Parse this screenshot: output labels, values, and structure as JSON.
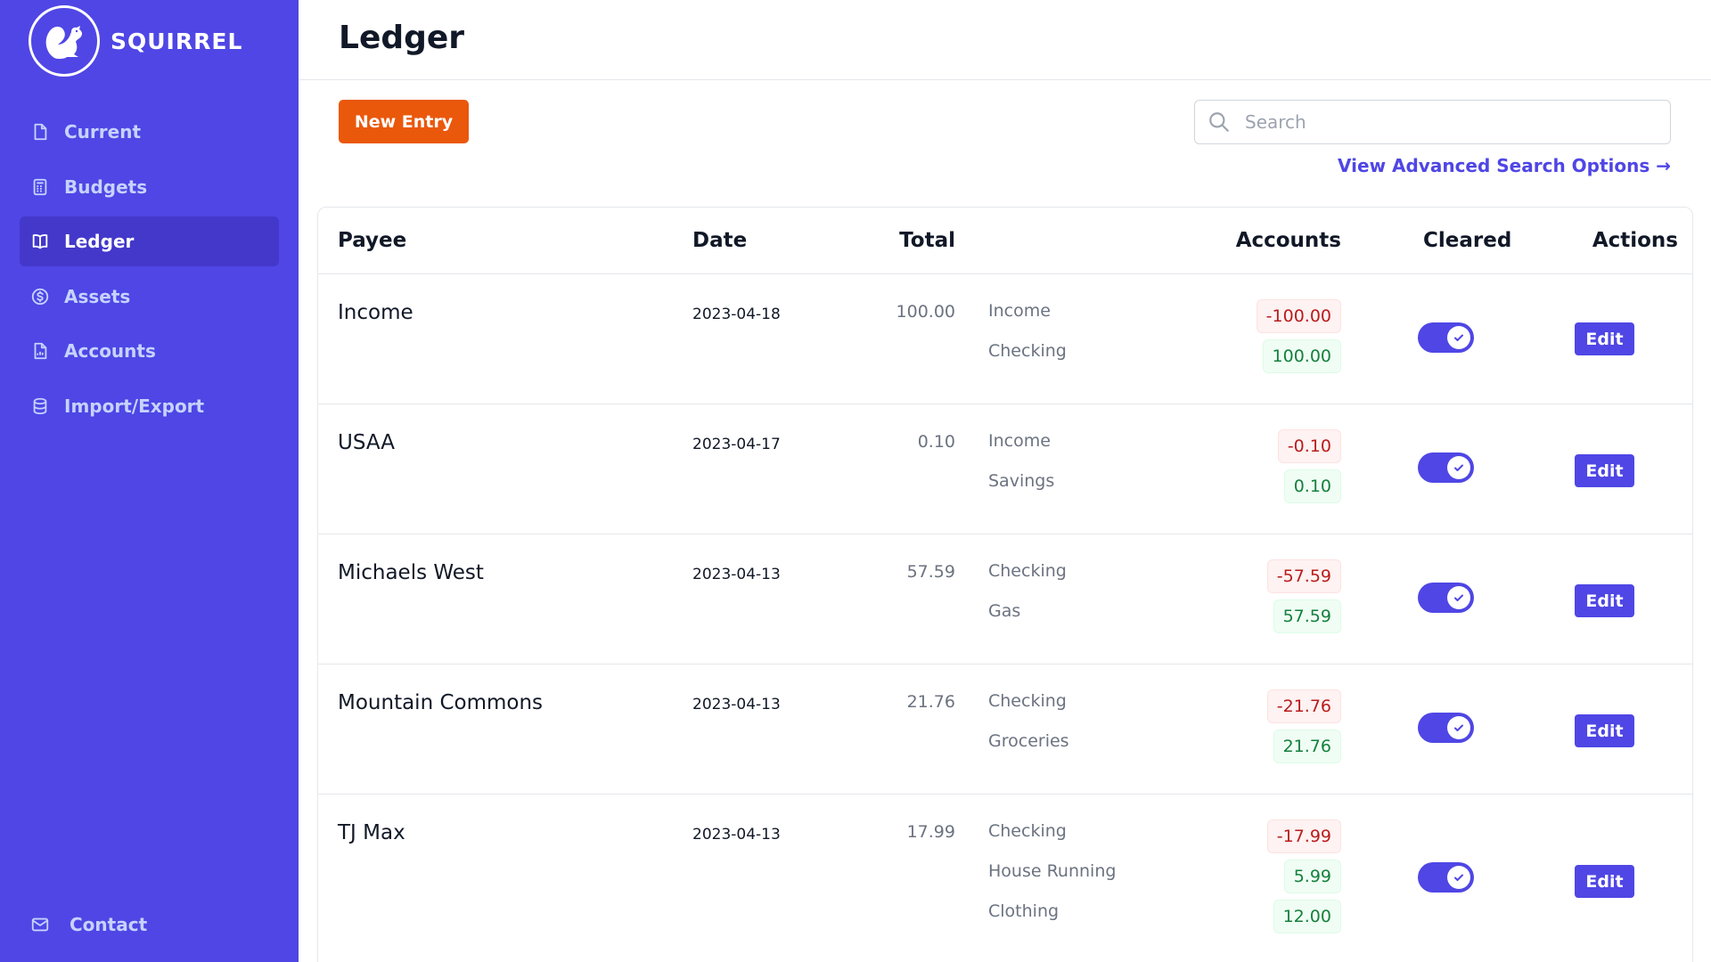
{
  "brand": {
    "name": "SQUIRREL",
    "logo_icon": "squirrel-icon"
  },
  "sidebar": {
    "items": [
      {
        "label": "Current",
        "icon": "document-icon",
        "active": false
      },
      {
        "label": "Budgets",
        "icon": "calculator-icon",
        "active": false
      },
      {
        "label": "Ledger",
        "icon": "book-icon",
        "active": true
      },
      {
        "label": "Assets",
        "icon": "dollar-circle-icon",
        "active": false
      },
      {
        "label": "Accounts",
        "icon": "document-chart-icon",
        "active": false
      },
      {
        "label": "Import/Export",
        "icon": "database-icon",
        "active": false
      }
    ],
    "contact_label": "Contact"
  },
  "header": {
    "title": "Ledger"
  },
  "toolbar": {
    "new_entry_label": "New Entry",
    "search_placeholder": "Search",
    "search_value": "",
    "advanced_link": "View Advanced Search Options →"
  },
  "table": {
    "columns": [
      "Payee",
      "Date",
      "Total",
      "Accounts",
      "Cleared",
      "Actions"
    ],
    "edit_label": "Edit",
    "rows": [
      {
        "payee": "Income",
        "date": "2023-04-18",
        "total": "100.00",
        "accounts": [
          "Income",
          "Checking"
        ],
        "amounts": [
          "-100.00",
          "100.00"
        ],
        "cleared": true
      },
      {
        "payee": "USAA",
        "date": "2023-04-17",
        "total": "0.10",
        "accounts": [
          "Income",
          "Savings"
        ],
        "amounts": [
          "-0.10",
          "0.10"
        ],
        "cleared": true
      },
      {
        "payee": "Michaels West",
        "date": "2023-04-13",
        "total": "57.59",
        "accounts": [
          "Checking",
          "Gas"
        ],
        "amounts": [
          "-57.59",
          "57.59"
        ],
        "cleared": true
      },
      {
        "payee": "Mountain Commons",
        "date": "2023-04-13",
        "total": "21.76",
        "accounts": [
          "Checking",
          "Groceries"
        ],
        "amounts": [
          "-21.76",
          "21.76"
        ],
        "cleared": true
      },
      {
        "payee": "TJ Max",
        "date": "2023-04-13",
        "total": "17.99",
        "accounts": [
          "Checking",
          "House Running",
          "Clothing"
        ],
        "amounts": [
          "-17.99",
          "5.99",
          "12.00"
        ],
        "cleared": true
      }
    ]
  },
  "colors": {
    "sidebar_bg": "#4f46e5",
    "sidebar_active": "#4338ca",
    "primary": "#4f46e5",
    "new_entry": "#ea580c",
    "negative": "#b91c1c",
    "positive": "#15803d"
  }
}
